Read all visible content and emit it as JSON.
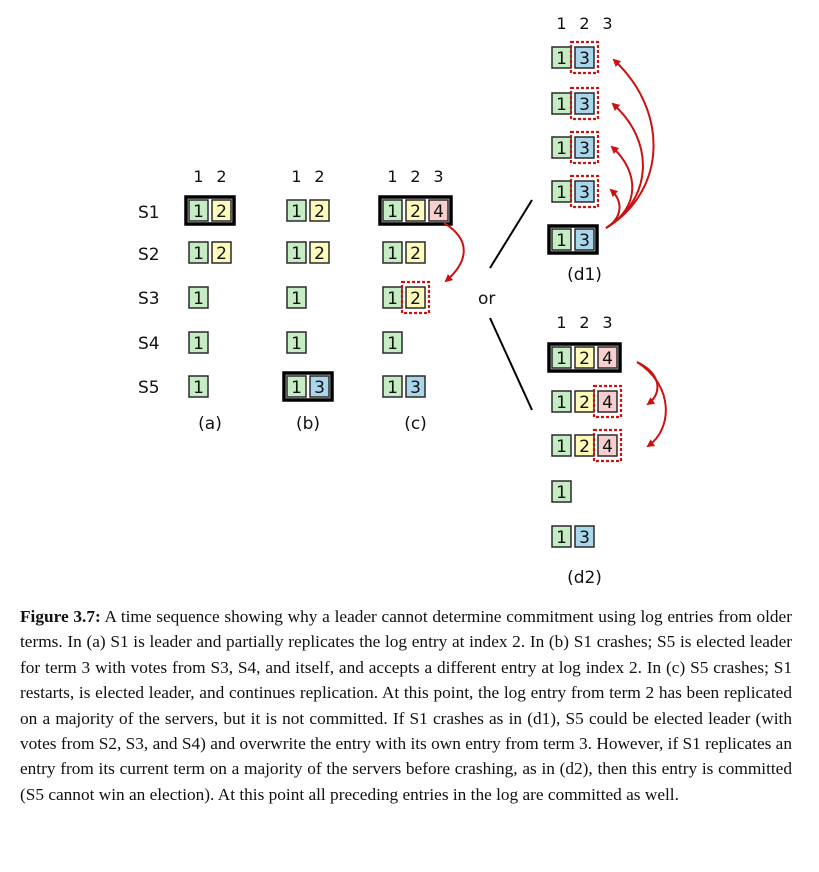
{
  "figure": {
    "colors": {
      "term1": "#c6ecc3",
      "term2": "#fefbbb",
      "term3": "#a9d6ea",
      "term4": "#f8cfcf",
      "highlight": "#cc1111"
    },
    "server_labels": [
      "S1",
      "S2",
      "S3",
      "S4",
      "S5"
    ],
    "or_label": "or",
    "panels": [
      {
        "id": "a",
        "label": "(a)",
        "indices": [
          "1",
          "2"
        ],
        "logs": [
          [
            "1",
            "2"
          ],
          [
            "1",
            "2"
          ],
          [
            "1"
          ],
          [
            "1"
          ],
          [
            "1"
          ]
        ],
        "leader": 0,
        "dashed": []
      },
      {
        "id": "b",
        "label": "(b)",
        "indices": [
          "1",
          "2"
        ],
        "logs": [
          [
            "1",
            "2"
          ],
          [
            "1",
            "2"
          ],
          [
            "1"
          ],
          [
            "1"
          ],
          [
            "1",
            "3"
          ]
        ],
        "leader": 4,
        "dashed": []
      },
      {
        "id": "c",
        "label": "(c)",
        "indices": [
          "1",
          "2",
          "3"
        ],
        "logs": [
          [
            "1",
            "2",
            "4"
          ],
          [
            "1",
            "2"
          ],
          [
            "1",
            "2"
          ],
          [
            "1"
          ],
          [
            "1",
            "3"
          ]
        ],
        "leader": 0,
        "dashed": [
          [
            2,
            1
          ]
        ]
      },
      {
        "id": "d1",
        "label": "(d1)",
        "indices": [
          "1",
          "2",
          "3"
        ],
        "logs": [
          [
            "1",
            "3"
          ],
          [
            "1",
            "3"
          ],
          [
            "1",
            "3"
          ],
          [
            "1",
            "3"
          ],
          [
            "1",
            "3"
          ]
        ],
        "leader": 4,
        "dashed": [
          [
            0,
            1
          ],
          [
            1,
            1
          ],
          [
            2,
            1
          ],
          [
            3,
            1
          ]
        ]
      },
      {
        "id": "d2",
        "label": "(d2)",
        "indices": [
          "1",
          "2",
          "3"
        ],
        "logs": [
          [
            "1",
            "2",
            "4"
          ],
          [
            "1",
            "2",
            "4"
          ],
          [
            "1",
            "2",
            "4"
          ],
          [
            "1"
          ],
          [
            "1",
            "3"
          ]
        ],
        "leader": 0,
        "dashed": [
          [
            1,
            2
          ],
          [
            2,
            2
          ]
        ]
      }
    ]
  },
  "caption": {
    "label": "Figure 3.7:",
    "text": "A time sequence showing why a leader cannot determine commitment using log entries from older terms. In (a) S1 is leader and partially replicates the log entry at index 2. In (b) S1 crashes; S5 is elected leader for term 3 with votes from S3, S4, and itself, and accepts a different entry at log index 2. In (c) S5 crashes; S1 restarts, is elected leader, and continues replication. At this point, the log entry from term 2 has been replicated on a majority of the servers, but it is not committed. If S1 crashes as in (d1), S5 could be elected leader (with votes from S2, S3, and S4) and overwrite the entry with its own entry from term 3. However, if S1 replicates an entry from its current term on a majority of the servers before crashing, as in (d2), then this entry is committed (S5 cannot win an election). At this point all preceding entries in the log are committed as well."
  }
}
